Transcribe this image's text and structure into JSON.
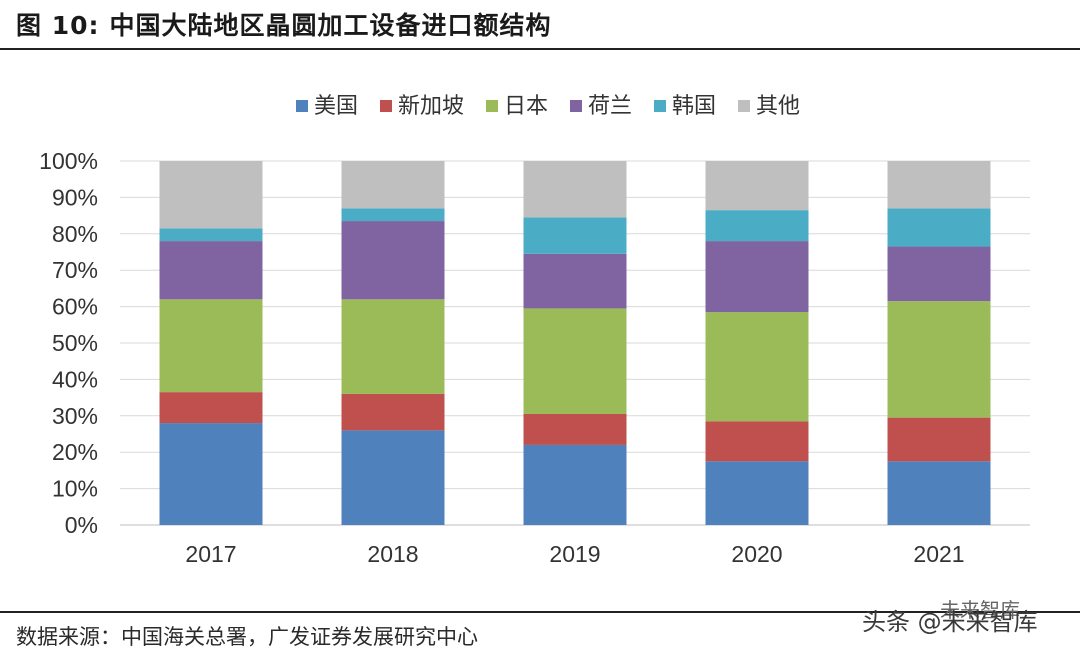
{
  "header": {
    "figure_label": "图 10:",
    "title": "中国大陆地区晶圆加工设备进口额结构"
  },
  "footer": {
    "source": "数据来源：中国海关总署，广发证券发展研究中心",
    "watermark": "头条 @未来智库",
    "watermark_badge": "未来智库"
  },
  "colors": {
    "美国": "#4f81bd",
    "新加坡": "#c0504d",
    "日本": "#9bbb59",
    "荷兰": "#8064a2",
    "韩国": "#4bacc6",
    "其他": "#bfbfbf"
  },
  "chart_data": {
    "type": "bar",
    "stacked": true,
    "title": "中国大陆地区晶圆加工设备进口额结构",
    "xlabel": "",
    "ylabel": "",
    "ylim": [
      0,
      100
    ],
    "y_ticks": [
      "0%",
      "10%",
      "20%",
      "30%",
      "40%",
      "50%",
      "60%",
      "70%",
      "80%",
      "90%",
      "100%"
    ],
    "legend_position": "top",
    "categories": [
      "2017",
      "2018",
      "2019",
      "2020",
      "2021"
    ],
    "series": [
      {
        "name": "美国",
        "values": [
          28,
          26,
          22,
          17.5,
          17.5
        ]
      },
      {
        "name": "新加坡",
        "values": [
          8.5,
          10,
          8.5,
          11,
          12
        ]
      },
      {
        "name": "日本",
        "values": [
          25.5,
          26,
          29,
          30,
          32
        ]
      },
      {
        "name": "荷兰",
        "values": [
          16,
          21.5,
          15,
          19.5,
          15
        ]
      },
      {
        "name": "韩国",
        "values": [
          3.5,
          3.5,
          10,
          8.5,
          10.5
        ]
      },
      {
        "name": "其他",
        "values": [
          18.5,
          13,
          15.5,
          13.5,
          13
        ]
      }
    ]
  }
}
